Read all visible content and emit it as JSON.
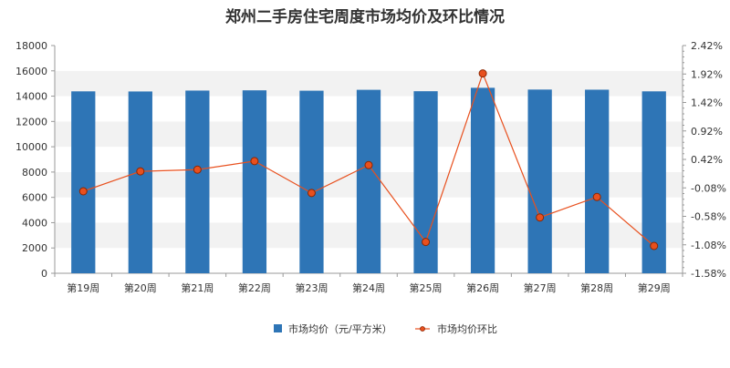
{
  "chart_data": {
    "type": "bar",
    "title": "郑州二手房住宅周度市场均价及环比情况",
    "categories": [
      "第19周",
      "第20周",
      "第21周",
      "第22周",
      "第23周",
      "第24周",
      "第25周",
      "第26周",
      "第27周",
      "第28周",
      "第29周"
    ],
    "series": [
      {
        "name": "市场均价（元/平方米）",
        "type": "bar",
        "axis": "left",
        "color": "#2E75B6",
        "values": [
          14380,
          14370,
          14440,
          14460,
          14430,
          14500,
          14390,
          14660,
          14520,
          14510,
          14380
        ]
      },
      {
        "name": "市场均价环比",
        "type": "line",
        "axis": "right",
        "color": "#E8501E",
        "marker_fill": "#E8501E",
        "marker_stroke": "#8B2500",
        "values": [
          -0.14,
          0.21,
          0.24,
          0.39,
          -0.17,
          0.32,
          -1.03,
          1.93,
          -0.6,
          -0.24,
          -1.1
        ]
      }
    ],
    "ylim_left": [
      0,
      18000
    ],
    "yticks_left": [
      "0",
      "2000",
      "4000",
      "6000",
      "8000",
      "10000",
      "12000",
      "14000",
      "16000",
      "18000"
    ],
    "ylim_right": [
      -1.58,
      2.42
    ],
    "yticks_right": [
      "-1.58%",
      "-1.08%",
      "-0.58%",
      "-0.08%",
      "0.42%",
      "0.92%",
      "1.42%",
      "1.92%",
      "2.42%"
    ],
    "grid": "horizontal bands",
    "legend_position": "bottom"
  }
}
